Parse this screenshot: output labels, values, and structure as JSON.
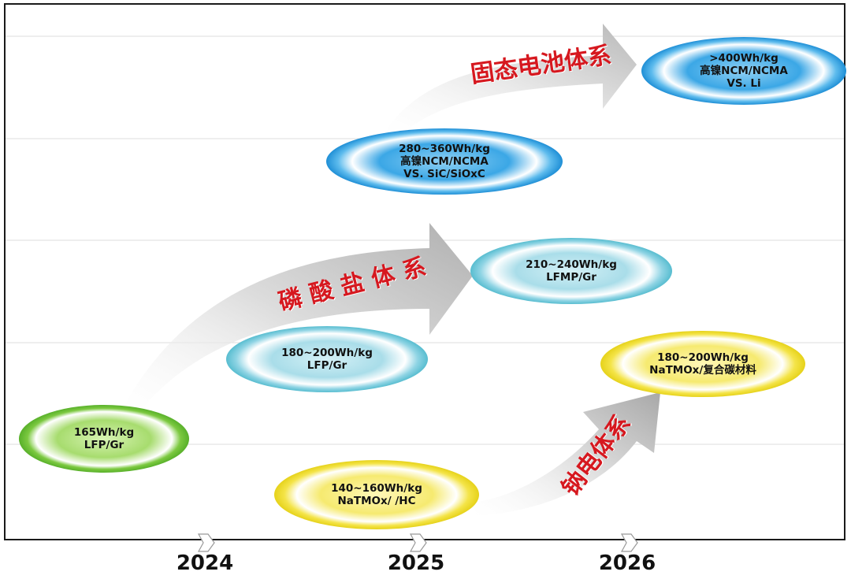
{
  "timeline": {
    "years": [
      "2024",
      "2025",
      "2026"
    ]
  },
  "routes": {
    "solid_state": "固态电池体系",
    "phosphate": "磷 酸 盐 体 系",
    "sodium": "钠电体系"
  },
  "nodes": {
    "lfp_165": {
      "line1": "165Wh/kg",
      "line2": "LFP/Gr"
    },
    "lfp_180": {
      "line1": "180~200Wh/kg",
      "line2": "LFP/Gr"
    },
    "lfmp": {
      "line1": "210~240Wh/kg",
      "line2": "LFMP/Gr"
    },
    "ncm_280": {
      "line1": "280~360Wh/kg",
      "line2": "高镍NCM/NCMA",
      "line3": "VS. SiC/SiOxC"
    },
    "ncm_400": {
      "line1": ">400Wh/kg",
      "line2": "高镍NCM/NCMA",
      "line3": "VS. Li"
    },
    "na_140": {
      "line1": "140~160Wh/kg",
      "line2": "NaTMOx/ /HC"
    },
    "na_180": {
      "line1": "180~200Wh/kg",
      "line2": "NaTMOx/复合碳材料"
    }
  },
  "colors": {
    "green": "#5fb82e",
    "teal": "#5cbfd1",
    "blue": "#2f9fe0",
    "yellow": "#f2e23a",
    "arrow": "#c8c8c8",
    "route_text": "#d6181f"
  }
}
